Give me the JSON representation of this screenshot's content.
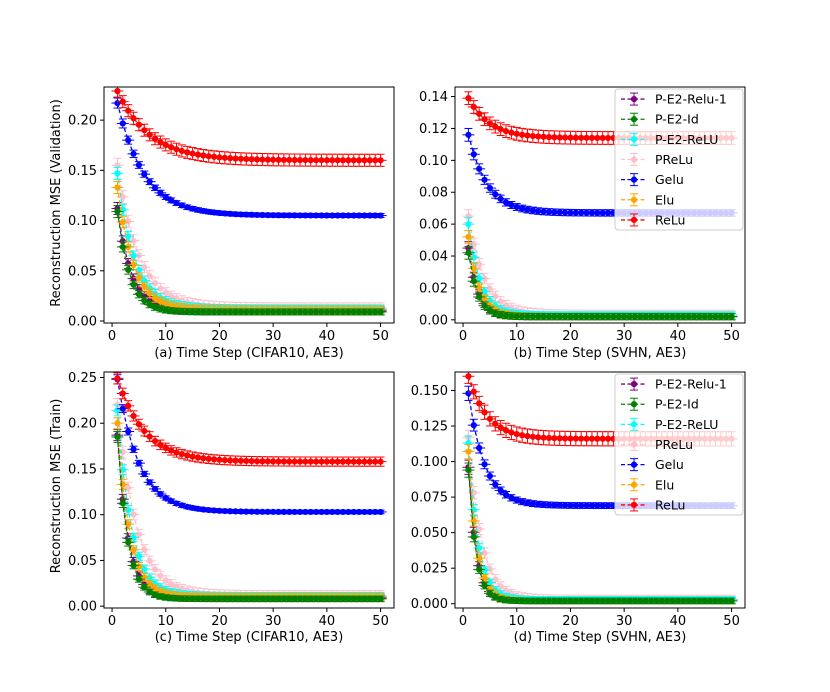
{
  "figure": {
    "ylabel_top": "Reconstruction MSE (Validation)",
    "ylabel_bottom": "Reconstruction MSE (Train)"
  },
  "legend_entries": [
    {
      "name": "P-E2-Relu-1",
      "color": "#800080"
    },
    {
      "name": "P-E2-Id",
      "color": "#008000"
    },
    {
      "name": "P-E2-ReLU",
      "color": "#00ffff"
    },
    {
      "name": "PReLu",
      "color": "#ffc0cb"
    },
    {
      "name": "Gelu",
      "color": "#0000ff"
    },
    {
      "name": "Elu",
      "color": "#ffa500"
    },
    {
      "name": "ReLu",
      "color": "#ff0000"
    }
  ],
  "chart_data": [
    {
      "type": "line",
      "xlabel": "(a) Time Step (CIFAR10, AE3)",
      "ylabel": "Reconstruction MSE (Validation)",
      "xlim": [
        -1.5,
        52.5
      ],
      "ylim": [
        -0.002,
        0.233
      ],
      "xticks": [
        0,
        10,
        20,
        30,
        40,
        50
      ],
      "yticks": [
        0.0,
        0.05,
        0.1,
        0.15,
        0.2
      ],
      "ytick_labels": [
        "0.00",
        "0.05",
        "0.10",
        "0.15",
        "0.20"
      ],
      "legend": false,
      "series_models": [
        {
          "name": "P-E2-Relu-1",
          "start": 0.112,
          "end": 0.01,
          "tau": 2.6,
          "err0": 0.006,
          "err": 0.004
        },
        {
          "name": "P-E2-Id",
          "start": 0.109,
          "end": 0.009,
          "tau": 2.3,
          "err0": 0.006,
          "err": 0.003
        },
        {
          "name": "P-E2-ReLU",
          "start": 0.147,
          "end": 0.012,
          "tau": 3.2,
          "err0": 0.006,
          "err": 0.004
        },
        {
          "name": "PReLu",
          "start": 0.155,
          "end": 0.013,
          "tau": 4.0,
          "err0": 0.007,
          "err": 0.005
        },
        {
          "name": "Gelu",
          "start": 0.217,
          "end": 0.105,
          "tau": 5.0,
          "err0": 0.005,
          "err": 0.002
        },
        {
          "name": "Elu",
          "start": 0.133,
          "end": 0.011,
          "tau": 3.0,
          "err0": 0.006,
          "err": 0.004
        },
        {
          "name": "ReLu",
          "start": 0.229,
          "end": 0.16,
          "tau": 6.0,
          "err0": 0.006,
          "err": 0.006
        }
      ]
    },
    {
      "type": "line",
      "xlabel": "(b) Time Step (SVHN, AE3)",
      "ylabel": "",
      "xlim": [
        -1.5,
        52.5
      ],
      "ylim": [
        -0.002,
        0.146
      ],
      "xticks": [
        0,
        10,
        20,
        30,
        40,
        50
      ],
      "yticks": [
        0.0,
        0.02,
        0.04,
        0.06,
        0.08,
        0.1,
        0.12,
        0.14
      ],
      "ytick_labels": [
        "0.00",
        "0.02",
        "0.04",
        "0.06",
        "0.08",
        "0.10",
        "0.12",
        "0.14"
      ],
      "legend": true,
      "series_models": [
        {
          "name": "P-E2-Relu-1",
          "start": 0.045,
          "end": 0.002,
          "tau": 1.8,
          "err0": 0.004,
          "err": 0.002
        },
        {
          "name": "P-E2-Id",
          "start": 0.042,
          "end": 0.002,
          "tau": 1.7,
          "err0": 0.004,
          "err": 0.002
        },
        {
          "name": "P-E2-ReLU",
          "start": 0.06,
          "end": 0.003,
          "tau": 2.2,
          "err0": 0.004,
          "err": 0.002
        },
        {
          "name": "PReLu",
          "start": 0.065,
          "end": 0.003,
          "tau": 3.0,
          "err0": 0.004,
          "err": 0.003
        },
        {
          "name": "Gelu",
          "start": 0.116,
          "end": 0.067,
          "tau": 3.5,
          "err0": 0.004,
          "err": 0.002
        },
        {
          "name": "Elu",
          "start": 0.052,
          "end": 0.002,
          "tau": 2.0,
          "err0": 0.004,
          "err": 0.002
        },
        {
          "name": "ReLu",
          "start": 0.139,
          "end": 0.114,
          "tau": 4.0,
          "err0": 0.004,
          "err": 0.004
        }
      ]
    },
    {
      "type": "line",
      "xlabel": "(c) Time Step (CIFAR10, AE3)",
      "ylabel": "Reconstruction MSE (Train)",
      "xlim": [
        -1.5,
        52.5
      ],
      "ylim": [
        -0.002,
        0.256
      ],
      "xticks": [
        0,
        10,
        20,
        30,
        40,
        50
      ],
      "yticks": [
        0.0,
        0.05,
        0.1,
        0.15,
        0.2,
        0.25
      ],
      "ytick_labels": [
        "0.00",
        "0.05",
        "0.10",
        "0.15",
        "0.20",
        "0.25"
      ],
      "legend": false,
      "series_models": [
        {
          "name": "P-E2-Relu-1",
          "start": 0.187,
          "end": 0.009,
          "tau": 2.0,
          "err0": 0.006,
          "err": 0.004
        },
        {
          "name": "P-E2-Id",
          "start": 0.185,
          "end": 0.008,
          "tau": 1.9,
          "err0": 0.006,
          "err": 0.003
        },
        {
          "name": "P-E2-ReLU",
          "start": 0.214,
          "end": 0.011,
          "tau": 2.6,
          "err0": 0.006,
          "err": 0.004
        },
        {
          "name": "PReLu",
          "start": 0.22,
          "end": 0.012,
          "tau": 3.5,
          "err0": 0.007,
          "err": 0.005
        },
        {
          "name": "Gelu",
          "start": 0.248,
          "end": 0.103,
          "tau": 4.0,
          "err0": 0.005,
          "err": 0.002
        },
        {
          "name": "Elu",
          "start": 0.2,
          "end": 0.01,
          "tau": 2.3,
          "err0": 0.006,
          "err": 0.004
        },
        {
          "name": "ReLu",
          "start": 0.249,
          "end": 0.158,
          "tau": 5.0,
          "err0": 0.006,
          "err": 0.005
        }
      ]
    },
    {
      "type": "line",
      "xlabel": "(d) Time Step (SVHN, AE3)",
      "ylabel": "",
      "xlim": [
        -1.5,
        52.5
      ],
      "ylim": [
        -0.003,
        0.163
      ],
      "xticks": [
        0,
        10,
        20,
        30,
        40,
        50
      ],
      "yticks": [
        0.0,
        0.025,
        0.05,
        0.075,
        0.1,
        0.125,
        0.15
      ],
      "ytick_labels": [
        "0.000",
        "0.025",
        "0.050",
        "0.075",
        "0.100",
        "0.125",
        "0.150"
      ],
      "legend": true,
      "series_models": [
        {
          "name": "P-E2-Relu-1",
          "start": 0.096,
          "end": 0.002,
          "tau": 1.5,
          "err0": 0.005,
          "err": 0.002
        },
        {
          "name": "P-E2-Id",
          "start": 0.094,
          "end": 0.002,
          "tau": 1.4,
          "err0": 0.005,
          "err": 0.002
        },
        {
          "name": "P-E2-ReLU",
          "start": 0.113,
          "end": 0.003,
          "tau": 1.8,
          "err0": 0.005,
          "err": 0.002
        },
        {
          "name": "PReLu",
          "start": 0.117,
          "end": 0.003,
          "tau": 2.4,
          "err0": 0.005,
          "err": 0.003
        },
        {
          "name": "Gelu",
          "start": 0.148,
          "end": 0.069,
          "tau": 3.0,
          "err0": 0.005,
          "err": 0.002
        },
        {
          "name": "Elu",
          "start": 0.107,
          "end": 0.002,
          "tau": 1.6,
          "err0": 0.005,
          "err": 0.002
        },
        {
          "name": "ReLu",
          "start": 0.16,
          "end": 0.116,
          "tau": 3.5,
          "err0": 0.005,
          "err": 0.005
        }
      ]
    }
  ]
}
